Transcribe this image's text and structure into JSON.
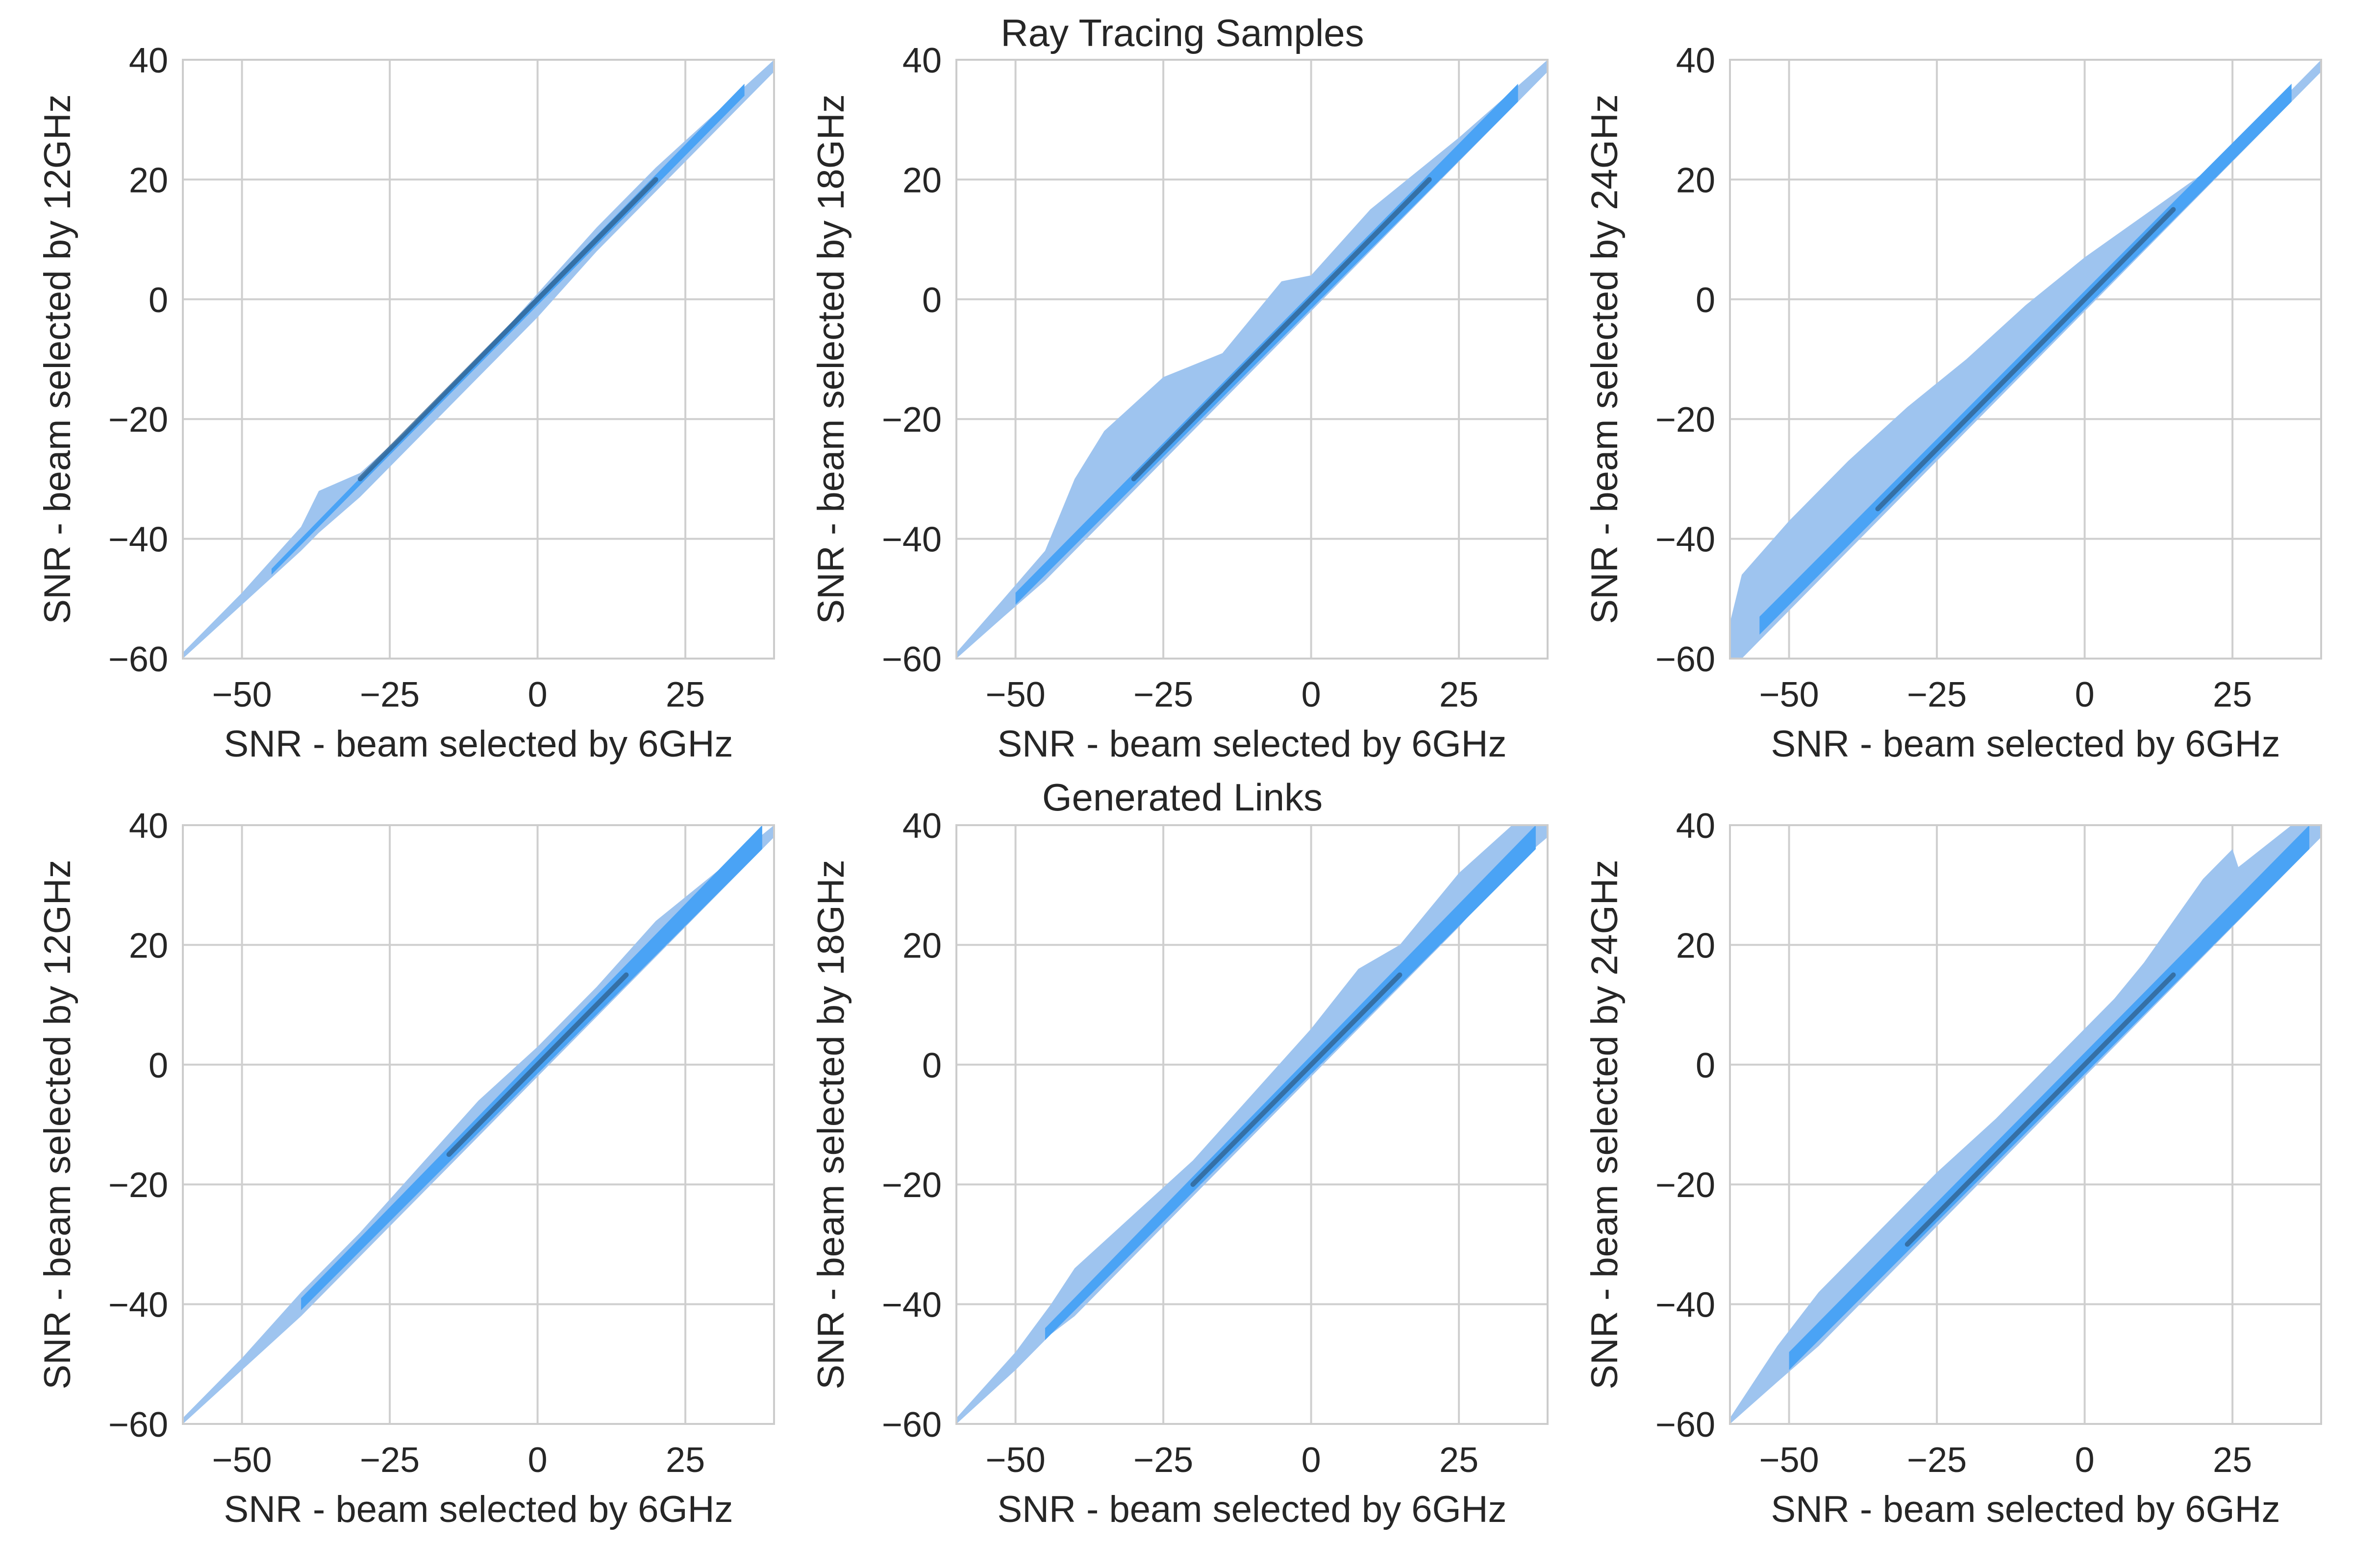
{
  "rows": [
    {
      "title": "Ray Tracing Samples"
    },
    {
      "title": "Generated Links"
    }
  ],
  "colors": {
    "outer": "#9ec4ef",
    "inner": "#4aa3f5",
    "core": "#2f5f8c",
    "grid": "#cfcfcf",
    "frame": "#cccccc",
    "text": "#262626"
  },
  "chart_data": [
    {
      "type": "area",
      "panel": "row1-col1",
      "row_title": "Ray Tracing Samples",
      "xlabel": "SNR - beam selected by 6GHz",
      "ylabel": "SNR - beam selected by 12GHz",
      "xlim": [
        -60,
        40
      ],
      "ylim": [
        -60,
        40
      ],
      "xticks": [
        -50,
        -25,
        0,
        25
      ],
      "yticks": [
        -60,
        -40,
        -20,
        0,
        20,
        40
      ],
      "grid": true,
      "outer_band": {
        "x": [
          -60,
          -50,
          -40,
          -37,
          -30,
          -20,
          -10,
          0,
          10,
          20,
          30,
          40
        ],
        "upper": [
          -59,
          -49,
          -38,
          -32,
          -29,
          -20,
          -10,
          1,
          12,
          22,
          31,
          40
        ],
        "lower": [
          -60,
          -51,
          -42,
          -39,
          -33,
          -23,
          -13,
          -3,
          8,
          18,
          28,
          38
        ]
      },
      "inner_band": {
        "x": [
          -45,
          35
        ],
        "upper": [
          -45,
          36
        ],
        "lower": [
          -46,
          34
        ]
      },
      "core_line": {
        "x": [
          -30,
          20
        ],
        "y": [
          -30,
          20
        ]
      }
    },
    {
      "type": "area",
      "panel": "row1-col2",
      "row_title": "Ray Tracing Samples",
      "xlabel": "SNR - beam selected by 6GHz",
      "ylabel": "SNR - beam selected by 18GHz",
      "xlim": [
        -60,
        40
      ],
      "ylim": [
        -60,
        40
      ],
      "xticks": [
        -50,
        -25,
        0,
        25
      ],
      "yticks": [
        -60,
        -40,
        -20,
        0,
        20,
        40
      ],
      "grid": true,
      "outer_band": {
        "x": [
          -60,
          -52,
          -45,
          -40,
          -35,
          -25,
          -15,
          -5,
          0,
          10,
          25,
          40
        ],
        "upper": [
          -59,
          -50,
          -42,
          -30,
          -22,
          -13,
          -9,
          3,
          4,
          15,
          27,
          40
        ],
        "lower": [
          -60,
          -53,
          -47,
          -42,
          -37,
          -27,
          -17,
          -7,
          -2,
          8,
          23,
          38
        ]
      },
      "inner_band": {
        "x": [
          -50,
          35
        ],
        "upper": [
          -49,
          36
        ],
        "lower": [
          -51,
          33
        ]
      },
      "core_line": {
        "x": [
          -30,
          20
        ],
        "y": [
          -30,
          20
        ]
      }
    },
    {
      "type": "area",
      "panel": "row1-col3",
      "row_title": "Ray Tracing Samples",
      "xlabel": "SNR - beam selected by 6GHz",
      "ylabel": "SNR - beam selected by 24GHz",
      "xlim": [
        -60,
        40
      ],
      "ylim": [
        -60,
        40
      ],
      "xticks": [
        -50,
        -25,
        0,
        25
      ],
      "yticks": [
        -60,
        -40,
        -20,
        0,
        20,
        40
      ],
      "grid": true,
      "outer_band": {
        "x": [
          -60,
          -58,
          -50,
          -40,
          -30,
          -20,
          -10,
          0,
          10,
          20,
          30,
          40
        ],
        "upper": [
          -54,
          -46,
          -37,
          -27,
          -18,
          -10,
          -1,
          7,
          14,
          21,
          30,
          40
        ],
        "lower": [
          -60,
          -60,
          -52,
          -42,
          -32,
          -22,
          -12,
          -2,
          8,
          18,
          28,
          38
        ]
      },
      "inner_band": {
        "x": [
          -55,
          35
        ],
        "upper": [
          -53,
          36
        ],
        "lower": [
          -56,
          33
        ]
      },
      "core_line": {
        "x": [
          -35,
          15
        ],
        "y": [
          -35,
          15
        ]
      }
    },
    {
      "type": "area",
      "panel": "row2-col1",
      "row_title": "Generated Links",
      "xlabel": "SNR - beam selected by 6GHz",
      "ylabel": "SNR - beam selected by 12GHz",
      "xlim": [
        -60,
        40
      ],
      "ylim": [
        -60,
        40
      ],
      "xticks": [
        -50,
        -25,
        0,
        25
      ],
      "yticks": [
        -60,
        -40,
        -20,
        0,
        20,
        40
      ],
      "grid": true,
      "outer_band": {
        "x": [
          -60,
          -50,
          -40,
          -30,
          -20,
          -10,
          0,
          10,
          20,
          30,
          40
        ],
        "upper": [
          -59,
          -49,
          -38,
          -28,
          -17,
          -6,
          3,
          13,
          24,
          32,
          40
        ],
        "lower": [
          -60,
          -51,
          -42,
          -32,
          -22,
          -12,
          -2,
          8,
          18,
          28,
          38
        ]
      },
      "inner_band": {
        "x": [
          -40,
          38
        ],
        "upper": [
          -39,
          40
        ],
        "lower": [
          -41,
          36
        ]
      },
      "core_line": {
        "x": [
          -15,
          15
        ],
        "y": [
          -15,
          15
        ]
      }
    },
    {
      "type": "area",
      "panel": "row2-col2",
      "row_title": "Generated Links",
      "xlabel": "SNR - beam selected by 6GHz",
      "ylabel": "SNR - beam selected by 18GHz",
      "xlim": [
        -60,
        40
      ],
      "ylim": [
        -60,
        40
      ],
      "xticks": [
        -50,
        -25,
        0,
        25
      ],
      "yticks": [
        -60,
        -40,
        -20,
        0,
        20,
        40
      ],
      "grid": true,
      "outer_band": {
        "x": [
          -60,
          -50,
          -44,
          -40,
          -30,
          -20,
          -10,
          0,
          8,
          15,
          25,
          34,
          40
        ],
        "upper": [
          -59,
          -48,
          -40,
          -34,
          -25,
          -16,
          -5,
          6,
          16,
          20,
          32,
          40,
          40
        ],
        "lower": [
          -60,
          -51,
          -45,
          -42,
          -32,
          -22,
          -12,
          -2,
          6,
          13,
          23,
          33,
          38
        ]
      },
      "inner_band": {
        "x": [
          -45,
          38
        ],
        "upper": [
          -44,
          40
        ],
        "lower": [
          -46,
          36
        ]
      },
      "core_line": {
        "x": [
          -20,
          15
        ],
        "y": [
          -20,
          15
        ]
      }
    },
    {
      "type": "area",
      "panel": "row2-col3",
      "row_title": "Generated Links",
      "xlabel": "SNR - beam selected by 6GHz",
      "ylabel": "SNR - beam selected by 24GHz",
      "xlim": [
        -60,
        40
      ],
      "ylim": [
        -60,
        40
      ],
      "xticks": [
        -50,
        -25,
        0,
        25
      ],
      "yticks": [
        -60,
        -40,
        -20,
        0,
        20,
        40
      ],
      "grid": true,
      "outer_band": {
        "x": [
          -60,
          -52,
          -45,
          -35,
          -25,
          -15,
          -5,
          5,
          10,
          15,
          20,
          25,
          26,
          35,
          40
        ],
        "upper": [
          -59,
          -47,
          -38,
          -28,
          -18,
          -9,
          1,
          11,
          17,
          24,
          31,
          36,
          33,
          40,
          40
        ],
        "lower": [
          -60,
          -53,
          -47,
          -37,
          -27,
          -17,
          -7,
          3,
          8,
          13,
          18,
          23,
          24,
          33,
          38
        ]
      },
      "inner_band": {
        "x": [
          -50,
          38
        ],
        "upper": [
          -48,
          40
        ],
        "lower": [
          -51,
          36
        ]
      },
      "core_line": {
        "x": [
          -30,
          15
        ],
        "y": [
          -30,
          15
        ]
      }
    }
  ]
}
